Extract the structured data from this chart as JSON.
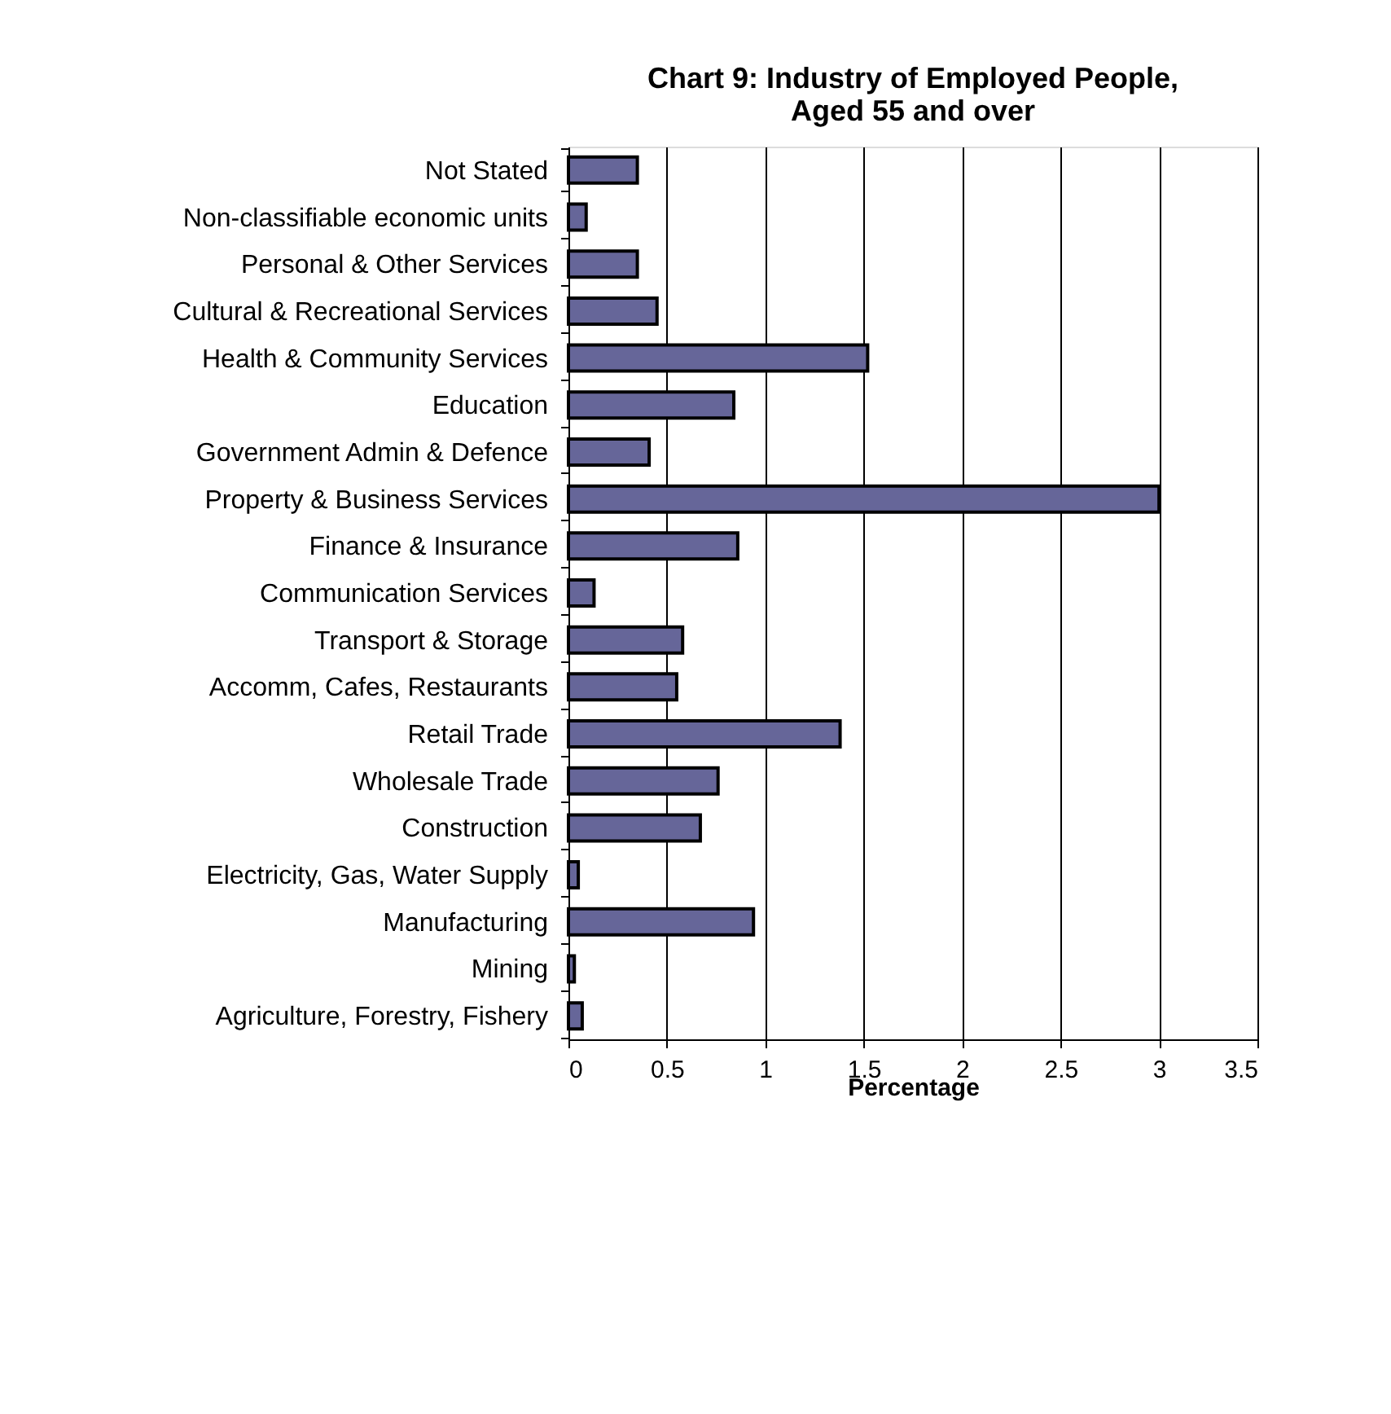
{
  "chart_data": {
    "type": "bar",
    "orientation": "horizontal",
    "title": [
      "Chart 9: Industry of Employed People,",
      "Aged 55 and over"
    ],
    "xlabel": "Percentage",
    "categories": [
      "Not Stated",
      "Non-classifiable economic units",
      "Personal & Other Services",
      "Cultural & Recreational Services",
      "Health & Community Services",
      "Education",
      "Government Admin & Defence",
      "Property & Business Services",
      "Finance & Insurance",
      "Communication Services",
      "Transport & Storage",
      "Accomm, Cafes, Restaurants",
      "Retail Trade",
      "Wholesale Trade",
      "Construction",
      "Electricity, Gas, Water Supply",
      "Manufacturing",
      "Mining",
      "Agriculture, Forestry, Fishery"
    ],
    "values": [
      0.35,
      0.09,
      0.35,
      0.45,
      1.52,
      0.84,
      0.41,
      3.0,
      0.86,
      0.13,
      0.58,
      0.55,
      1.38,
      0.76,
      0.67,
      0.05,
      0.94,
      0.03,
      0.07
    ],
    "color": "#666699",
    "xlim": [
      0,
      3.5
    ],
    "xticks": [
      0,
      0.5,
      1,
      1.5,
      2,
      2.5,
      3,
      3.5
    ],
    "grid": "x"
  }
}
